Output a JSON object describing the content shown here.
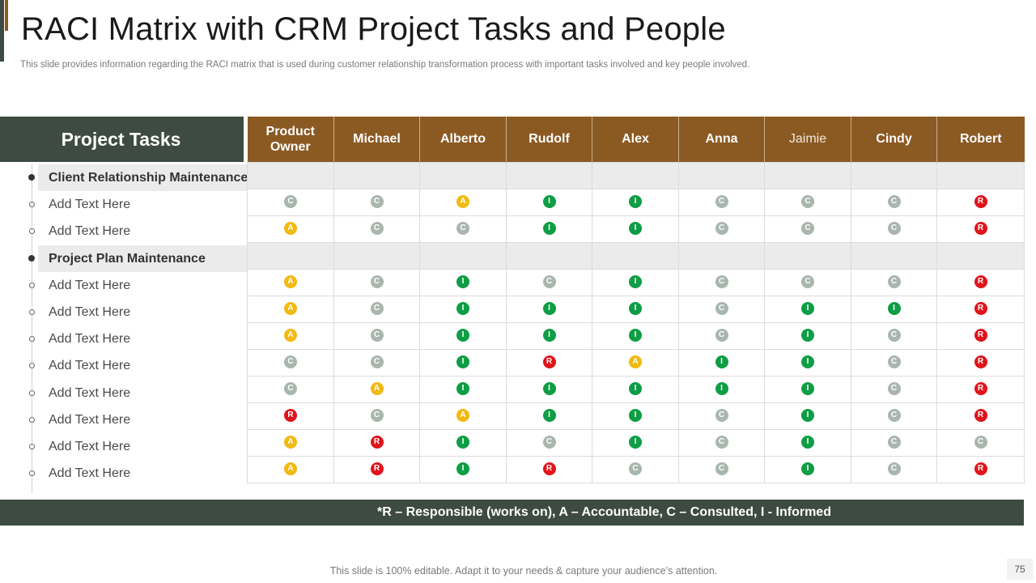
{
  "slide": {
    "title": "RACI Matrix with CRM Project Tasks and People",
    "subtitle": "This slide provides information regarding the RACI matrix that is used during customer relationship transformation process with important tasks involved and key people involved.",
    "footer": "This slide is 100% editable. Adapt it to your needs & capture your audience’s attention.",
    "page_number": "75"
  },
  "colors": {
    "header_dark": "#3d4b42",
    "header_brown": "#8b5a23",
    "responsible": "#e0141b",
    "accountable": "#f2b911",
    "consulted": "#a9b6ae",
    "informed": "#0f9d45"
  },
  "matrix": {
    "tasks_header": "Project Tasks",
    "people": [
      "Product Owner",
      "Michael",
      "Alberto",
      "Rudolf",
      "Alex",
      "Anna",
      "Jaimie",
      "Cindy",
      "Robert"
    ],
    "rows": [
      {
        "type": "group",
        "label": "Client Relationship Maintenance",
        "values": []
      },
      {
        "type": "task",
        "label": "Add Text Here",
        "values": [
          "C",
          "C",
          "A",
          "I",
          "I",
          "C",
          "C",
          "C",
          "R"
        ]
      },
      {
        "type": "task",
        "label": "Add Text Here",
        "values": [
          "A",
          "C",
          "C",
          "I",
          "I",
          "C",
          "C",
          "C",
          "R"
        ]
      },
      {
        "type": "group",
        "label": "Project Plan Maintenance",
        "values": []
      },
      {
        "type": "task",
        "label": "Add Text Here",
        "values": [
          "A",
          "C",
          "I",
          "C",
          "I",
          "C",
          "C",
          "C",
          "R"
        ]
      },
      {
        "type": "task",
        "label": "Add Text Here",
        "values": [
          "A",
          "C",
          "I",
          "I",
          "I",
          "C",
          "I",
          "I",
          "R"
        ]
      },
      {
        "type": "task",
        "label": "Add Text Here",
        "values": [
          "A",
          "C",
          "I",
          "I",
          "I",
          "C",
          "I",
          "C",
          "R"
        ]
      },
      {
        "type": "task",
        "label": "Add Text Here",
        "values": [
          "C",
          "C",
          "I",
          "R",
          "A",
          "I",
          "I",
          "C",
          "R"
        ]
      },
      {
        "type": "task",
        "label": "Add Text Here",
        "values": [
          "C",
          "A",
          "I",
          "I",
          "I",
          "I",
          "I",
          "C",
          "R"
        ]
      },
      {
        "type": "task",
        "label": "Add Text Here",
        "values": [
          "R",
          "C",
          "A",
          "I",
          "I",
          "C",
          "I",
          "C",
          "R"
        ]
      },
      {
        "type": "task",
        "label": "Add Text Here",
        "values": [
          "A",
          "R",
          "I",
          "C",
          "I",
          "C",
          "I",
          "C",
          "C"
        ]
      },
      {
        "type": "task",
        "label": "Add Text Here",
        "values": [
          "A",
          "R",
          "I",
          "R",
          "C",
          "C",
          "I",
          "C",
          "R"
        ]
      }
    ],
    "legend": "*R – Responsible (works on), A – Accountable, C – Consulted, I - Informed"
  }
}
